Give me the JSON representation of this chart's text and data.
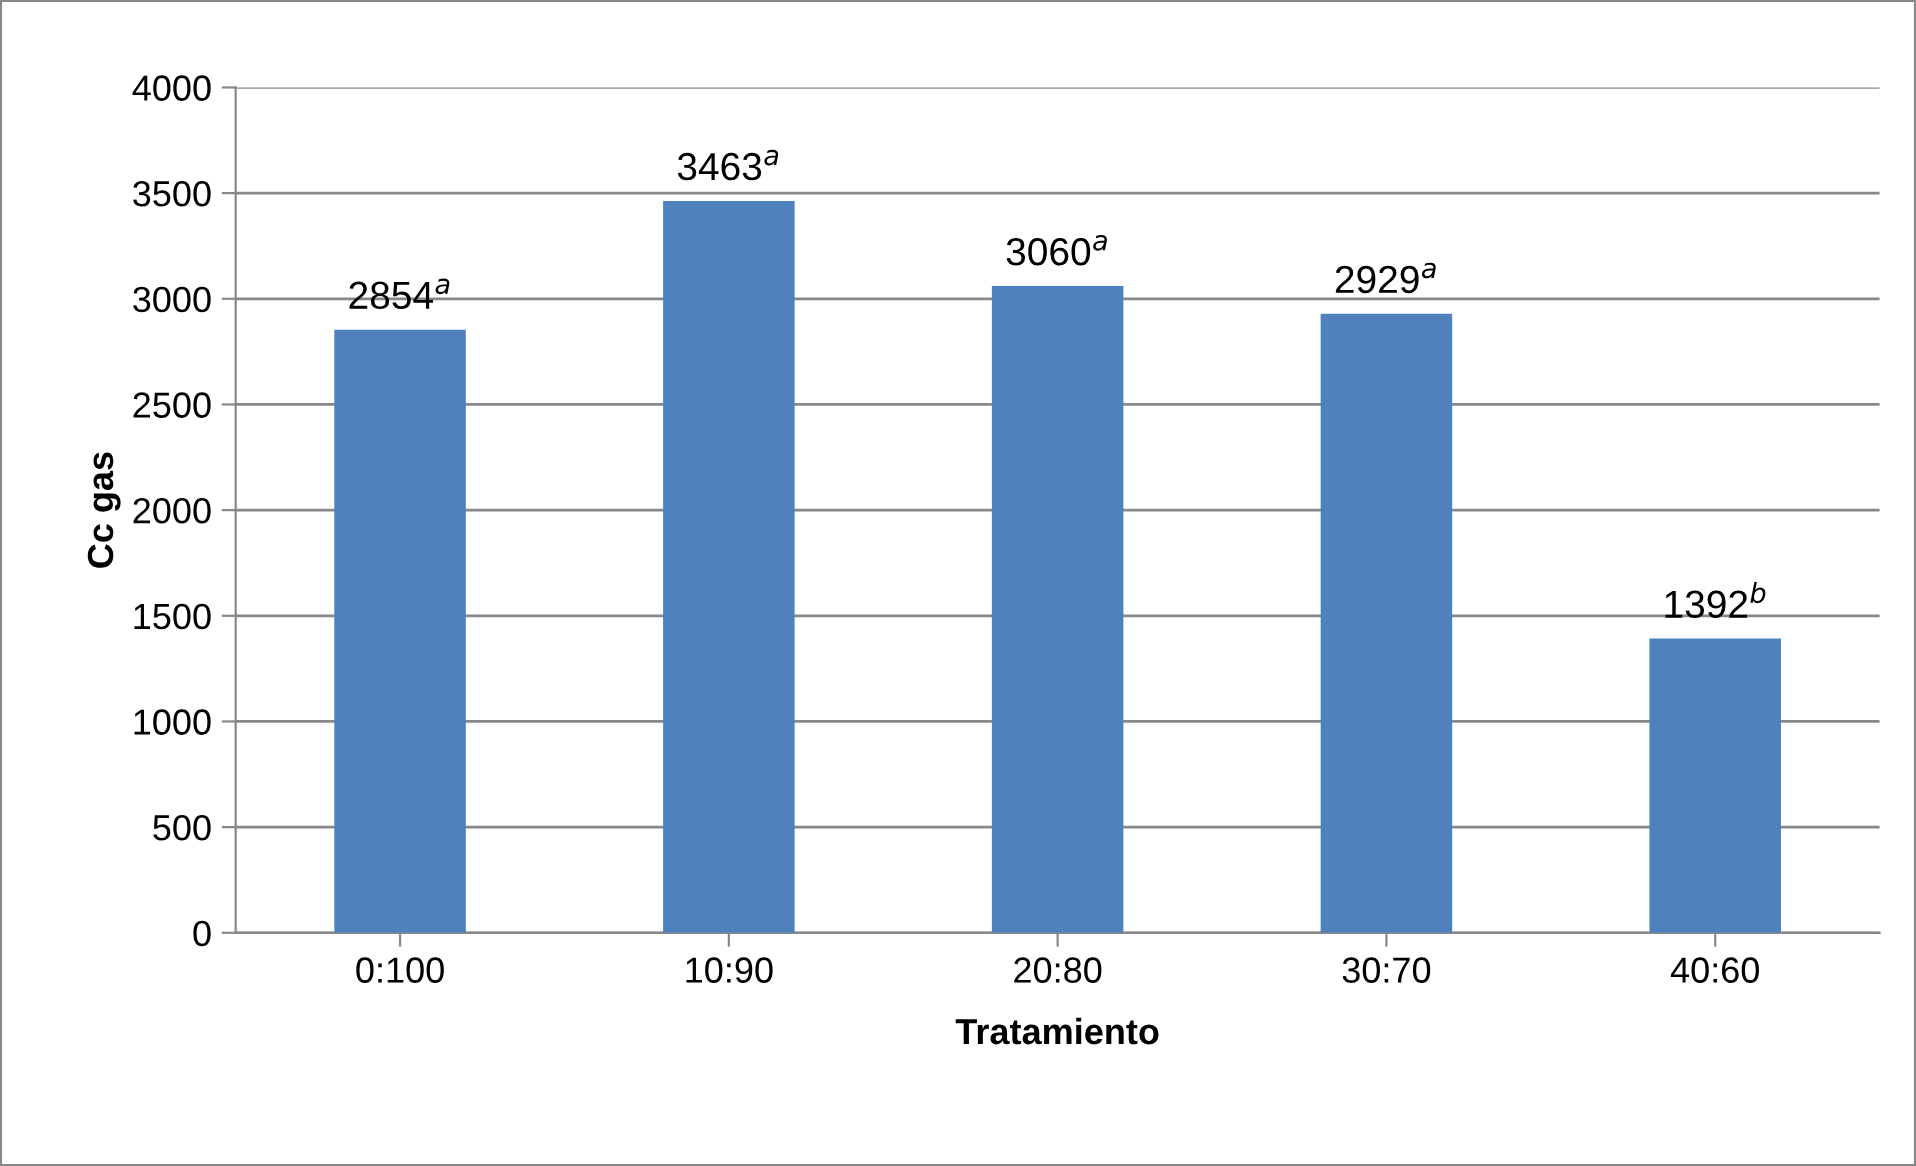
{
  "chart_data": {
    "type": "bar",
    "xlabel": "Tratamiento",
    "ylabel": "Cc gas",
    "categories": [
      "0:100",
      "10:90",
      "20:80",
      "30:70",
      "40:60"
    ],
    "values": [
      2854,
      3463,
      3060,
      2929,
      1392
    ],
    "value_labels": [
      "2854$^{a}$",
      "3463$^{a}$",
      "3060$^{a}$",
      "2929$^{a}$",
      "1392$^{b}$"
    ],
    "color": "#4f81bd",
    "ylim": [
      0,
      4000
    ],
    "yticks": [
      0,
      500,
      1000,
      1500,
      2000,
      2500,
      3000,
      3500,
      4000
    ],
    "grid": "y"
  }
}
